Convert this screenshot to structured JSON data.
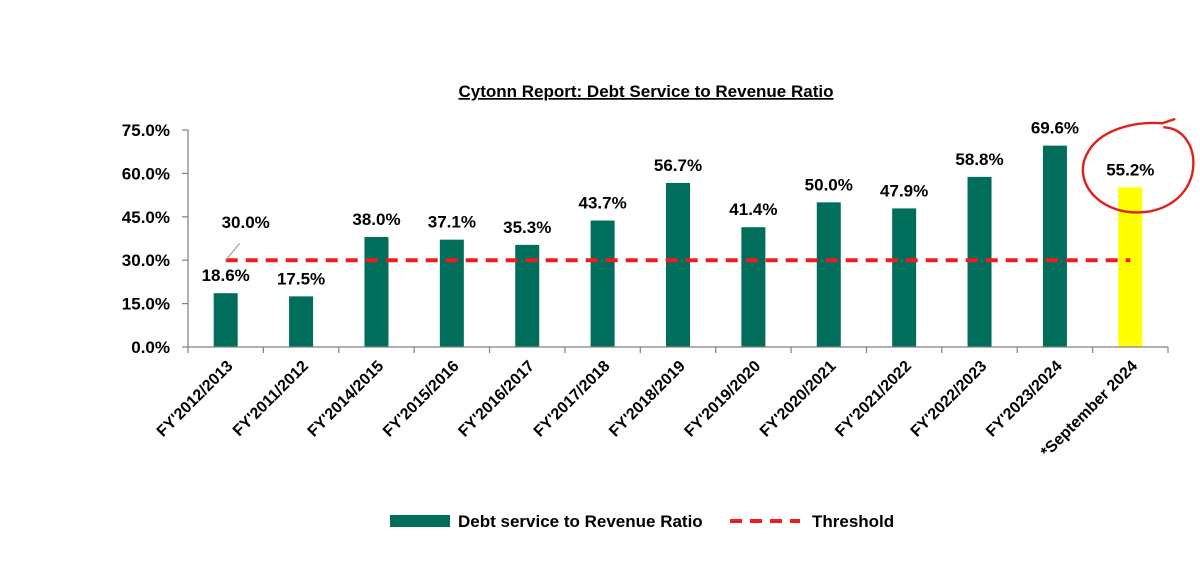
{
  "chart_data": {
    "type": "bar",
    "title": "Cytonn Report: Debt Service to Revenue Ratio",
    "xlabel": "",
    "ylabel": "",
    "ylim": [
      0,
      75
    ],
    "yticks": [
      "0.0%",
      "15.0%",
      "30.0%",
      "45.0%",
      "60.0%",
      "75.0%"
    ],
    "categories": [
      "FY'2012/2013",
      "FY'2011/2012",
      "FY'2014/2015",
      "FY'2015/2016",
      "FY'2016/2017",
      "FY'2017/2018",
      "FY'2018/2019",
      "FY'2019/2020",
      "FY'2020/2021",
      "FY'2021/2022",
      "FY'2022/2023",
      "FY'2023/2024",
      "*September 2024"
    ],
    "series": [
      {
        "name": "Debt service to Revenue Ratio",
        "values": [
          18.6,
          17.5,
          38.0,
          37.1,
          35.3,
          43.7,
          56.7,
          41.4,
          50.0,
          47.9,
          58.8,
          69.6,
          55.2
        ],
        "labels": [
          "18.6%",
          "17.5%",
          "38.0%",
          "37.1%",
          "35.3%",
          "43.7%",
          "56.7%",
          "41.4%",
          "50.0%",
          "47.9%",
          "58.8%",
          "69.6%",
          "55.2%"
        ],
        "color": "#006e5a",
        "highlight_color": "#ffff00",
        "highlight_index": 12
      },
      {
        "name": "Threshold",
        "type": "line",
        "value": 30.0,
        "label": "30.0%",
        "color": "#ee1c1c",
        "dashed": true
      }
    ],
    "legend_position": "bottom",
    "grid": false,
    "annotation": {
      "shape": "circle",
      "color": "#e0201a",
      "target_index": 12
    }
  }
}
